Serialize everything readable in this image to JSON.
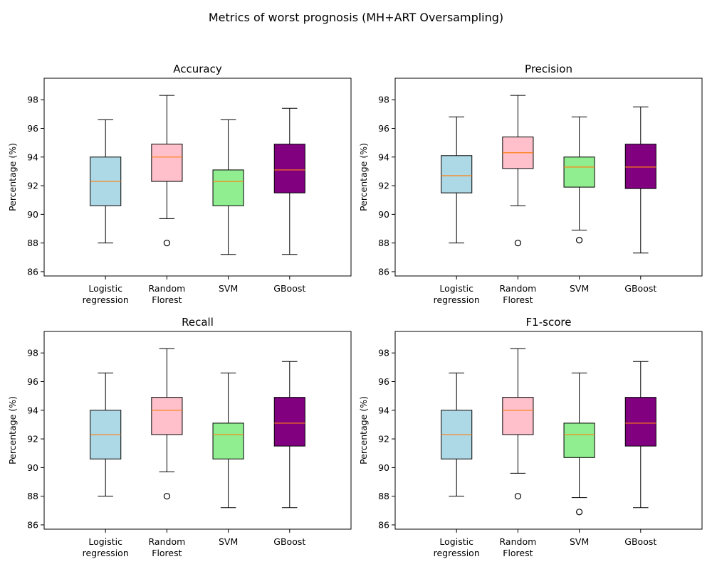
{
  "figure": {
    "title": "Metrics of worst prognosis (MH+ART Oversampling)"
  },
  "colors": {
    "box_fills": [
      "#add8e6",
      "#ffc0cb",
      "#90ee90",
      "#800080"
    ],
    "median": "#ff7f0e",
    "edge": "#000000"
  },
  "chart_data": [
    {
      "type": "box",
      "title": "Accuracy",
      "ylabel": "Percentage (%)",
      "categories": [
        "Logistic\nregression",
        "Random\nFlorest",
        "SVM",
        "GBoost"
      ],
      "yticks": [
        86,
        88,
        90,
        92,
        94,
        96,
        98
      ],
      "ylim": [
        85.7,
        99.5
      ],
      "boxes": [
        {
          "whislo": 88.0,
          "q1": 90.6,
          "med": 92.3,
          "q3": 94.0,
          "whishi": 96.6,
          "fliers": []
        },
        {
          "whislo": 89.7,
          "q1": 92.3,
          "med": 94.0,
          "q3": 94.9,
          "whishi": 98.3,
          "fliers": [
            88.0
          ]
        },
        {
          "whislo": 87.2,
          "q1": 90.6,
          "med": 92.3,
          "q3": 93.1,
          "whishi": 96.6,
          "fliers": []
        },
        {
          "whislo": 87.2,
          "q1": 91.5,
          "med": 93.1,
          "q3": 94.9,
          "whishi": 97.4,
          "fliers": []
        }
      ]
    },
    {
      "type": "box",
      "title": "Precision",
      "ylabel": "Percentage (%)",
      "categories": [
        "Logistic\nregression",
        "Random\nFlorest",
        "SVM",
        "GBoost"
      ],
      "yticks": [
        86,
        88,
        90,
        92,
        94,
        96,
        98
      ],
      "ylim": [
        85.7,
        99.5
      ],
      "boxes": [
        {
          "whislo": 88.0,
          "q1": 91.5,
          "med": 92.7,
          "q3": 94.1,
          "whishi": 96.8,
          "fliers": []
        },
        {
          "whislo": 90.6,
          "q1": 93.2,
          "med": 94.3,
          "q3": 95.4,
          "whishi": 98.3,
          "fliers": [
            88.0
          ]
        },
        {
          "whislo": 88.9,
          "q1": 91.9,
          "med": 93.3,
          "q3": 94.0,
          "whishi": 96.8,
          "fliers": [
            88.2
          ]
        },
        {
          "whislo": 87.3,
          "q1": 91.8,
          "med": 93.3,
          "q3": 94.9,
          "whishi": 97.5,
          "fliers": []
        }
      ]
    },
    {
      "type": "box",
      "title": "Recall",
      "ylabel": "Percentage (%)",
      "categories": [
        "Logistic\nregression",
        "Random\nFlorest",
        "SVM",
        "GBoost"
      ],
      "yticks": [
        86,
        88,
        90,
        92,
        94,
        96,
        98
      ],
      "ylim": [
        85.7,
        99.5
      ],
      "boxes": [
        {
          "whislo": 88.0,
          "q1": 90.6,
          "med": 92.3,
          "q3": 94.0,
          "whishi": 96.6,
          "fliers": []
        },
        {
          "whislo": 89.7,
          "q1": 92.3,
          "med": 94.0,
          "q3": 94.9,
          "whishi": 98.3,
          "fliers": [
            88.0
          ]
        },
        {
          "whislo": 87.2,
          "q1": 90.6,
          "med": 92.3,
          "q3": 93.1,
          "whishi": 96.6,
          "fliers": []
        },
        {
          "whislo": 87.2,
          "q1": 91.5,
          "med": 93.1,
          "q3": 94.9,
          "whishi": 97.4,
          "fliers": []
        }
      ]
    },
    {
      "type": "box",
      "title": "F1-score",
      "ylabel": "Percentage (%)",
      "categories": [
        "Logistic\nregression",
        "Random\nFlorest",
        "SVM",
        "GBoost"
      ],
      "yticks": [
        86,
        88,
        90,
        92,
        94,
        96,
        98
      ],
      "ylim": [
        85.7,
        99.5
      ],
      "boxes": [
        {
          "whislo": 88.0,
          "q1": 90.6,
          "med": 92.3,
          "q3": 94.0,
          "whishi": 96.6,
          "fliers": []
        },
        {
          "whislo": 89.6,
          "q1": 92.3,
          "med": 94.0,
          "q3": 94.9,
          "whishi": 98.3,
          "fliers": [
            88.0
          ]
        },
        {
          "whislo": 87.9,
          "q1": 90.7,
          "med": 92.3,
          "q3": 93.1,
          "whishi": 96.6,
          "fliers": [
            86.9
          ]
        },
        {
          "whislo": 87.2,
          "q1": 91.5,
          "med": 93.1,
          "q3": 94.9,
          "whishi": 97.4,
          "fliers": []
        }
      ]
    }
  ]
}
